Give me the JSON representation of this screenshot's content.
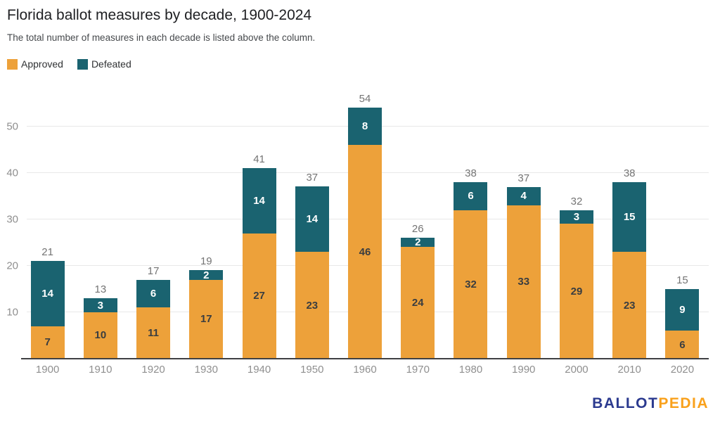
{
  "header": {
    "title": "Florida ballot measures by decade, 1900-2024",
    "subtitle": "The total number of measures in each decade is listed above the column."
  },
  "legend": [
    {
      "label": "Approved",
      "color": "#eda13a"
    },
    {
      "label": "Defeated",
      "color": "#1a6370"
    }
  ],
  "chart_data": {
    "type": "bar",
    "stacked": true,
    "title": "Florida ballot measures by decade, 1900-2024",
    "subtitle": "The total number of measures in each decade is listed above the column.",
    "categories": [
      "1900",
      "1910",
      "1920",
      "1930",
      "1940",
      "1950",
      "1960",
      "1970",
      "1980",
      "1990",
      "2000",
      "2010",
      "2020"
    ],
    "series": [
      {
        "name": "Approved",
        "color": "#eda13a",
        "values": [
          7,
          10,
          11,
          17,
          27,
          23,
          46,
          24,
          32,
          33,
          29,
          23,
          6
        ]
      },
      {
        "name": "Defeated",
        "color": "#1a6370",
        "values": [
          14,
          3,
          6,
          2,
          14,
          14,
          8,
          2,
          6,
          4,
          3,
          15,
          9
        ]
      }
    ],
    "totals": [
      21,
      13,
      17,
      19,
      41,
      37,
      54,
      26,
      38,
      37,
      32,
      38,
      15
    ],
    "yticks": [
      10,
      20,
      30,
      40,
      50
    ],
    "ylim": [
      0,
      57.5
    ],
    "xlabel": "",
    "ylabel": "",
    "grid": true,
    "legend_position": "top-left"
  },
  "colors": {
    "approved": "#eda13a",
    "defeated": "#1a6370",
    "axis_line": "#3f4043",
    "gridline": "#e8e8e8",
    "tick_text": "#8f8f8f",
    "total_label": "#747474",
    "label_on_approved": "#3a3d40",
    "label_on_defeated": "#ffffff"
  },
  "footer": {
    "logo_primary": "BALLOT",
    "logo_secondary": "PEDIA"
  }
}
